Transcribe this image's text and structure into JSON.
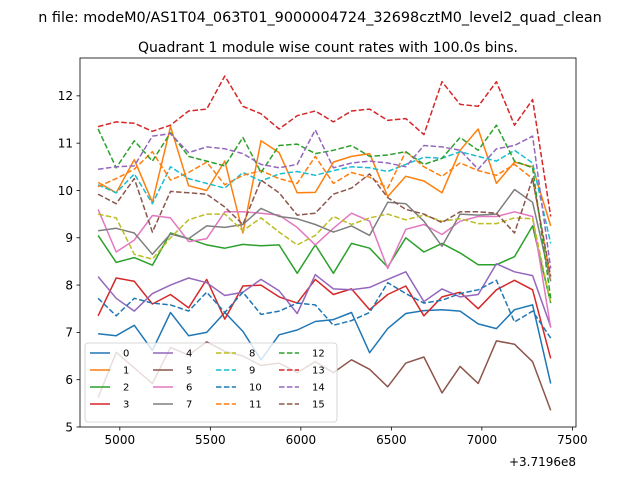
{
  "chart_data": {
    "type": "line",
    "suptitle": "n file: modeM0/AS1T04_063T01_9000004724_32698cztM0_level2_quad_clean",
    "title": "Quadrant 1 module wise count rates with 100.0s bins.",
    "xlabel": "",
    "ylabel": "",
    "offset_label": "+3.7196e8",
    "xlim": [
      4780,
      7520
    ],
    "ylim": [
      5,
      12.8
    ],
    "xticks": [
      5000,
      5500,
      6000,
      6500,
      7000,
      7500
    ],
    "yticks": [
      5,
      6,
      7,
      8,
      9,
      10,
      11,
      12
    ],
    "x": [
      4880,
      4980,
      5080,
      5180,
      5280,
      5380,
      5480,
      5580,
      5680,
      5780,
      5880,
      5980,
      6080,
      6180,
      6280,
      6380,
      6480,
      6580,
      6680,
      6780,
      6880,
      6980,
      7080,
      7180,
      7280,
      7380
    ],
    "legend": {
      "position": "lower-left",
      "columns": 4
    },
    "series": [
      {
        "name": "0",
        "color": "#1f77b4",
        "dash": "solid",
        "values": [
          6.97,
          6.93,
          7.15,
          6.62,
          7.42,
          6.93,
          7.0,
          7.42,
          7.02,
          6.42,
          6.95,
          7.05,
          7.23,
          7.27,
          7.42,
          6.57,
          7.08,
          7.4,
          7.46,
          7.48,
          7.45,
          7.18,
          7.08,
          7.48,
          7.58,
          5.92
        ]
      },
      {
        "name": "1",
        "color": "#ff7f0e",
        "dash": "solid",
        "values": [
          10.17,
          9.95,
          10.65,
          9.75,
          11.35,
          10.1,
          10.0,
          10.62,
          9.1,
          11.05,
          10.8,
          9.95,
          9.96,
          10.6,
          10.72,
          10.78,
          9.87,
          10.3,
          10.2,
          9.95,
          10.85,
          11.3,
          10.15,
          10.6,
          10.5,
          9.25
        ]
      },
      {
        "name": "2",
        "color": "#2ca02c",
        "dash": "solid",
        "values": [
          9.05,
          8.48,
          8.58,
          8.42,
          9.1,
          8.98,
          8.85,
          8.78,
          8.86,
          8.83,
          8.85,
          8.25,
          8.85,
          8.25,
          8.88,
          8.78,
          8.38,
          9.0,
          8.7,
          8.88,
          8.68,
          8.43,
          8.43,
          8.6,
          9.25,
          7.62
        ]
      },
      {
        "name": "3",
        "color": "#d62728",
        "dash": "solid",
        "values": [
          7.35,
          8.15,
          8.08,
          7.6,
          7.8,
          7.52,
          8.12,
          7.28,
          7.98,
          8.0,
          7.75,
          7.62,
          8.12,
          7.8,
          7.92,
          7.48,
          7.8,
          7.98,
          7.35,
          7.75,
          7.85,
          7.5,
          7.9,
          8.1,
          7.9,
          6.45
        ]
      },
      {
        "name": "4",
        "color": "#9467bd",
        "dash": "solid",
        "values": [
          8.18,
          7.72,
          7.45,
          7.82,
          8.0,
          8.15,
          8.05,
          7.78,
          7.85,
          8.12,
          7.88,
          7.4,
          8.22,
          7.92,
          7.9,
          7.95,
          8.12,
          8.28,
          7.65,
          7.92,
          7.75,
          7.8,
          8.45,
          8.28,
          8.2,
          7.12
        ]
      },
      {
        "name": "5",
        "color": "#8c564b",
        "dash": "solid",
        "values": [
          5.62,
          6.58,
          6.25,
          5.92,
          6.68,
          6.52,
          6.8,
          6.6,
          6.5,
          6.3,
          6.35,
          6.15,
          6.38,
          6.15,
          6.42,
          6.22,
          5.85,
          6.35,
          6.48,
          5.72,
          6.28,
          5.92,
          6.82,
          6.75,
          6.38,
          5.35
        ]
      },
      {
        "name": "6",
        "color": "#e377c2",
        "dash": "solid",
        "values": [
          9.6,
          8.7,
          8.95,
          9.47,
          9.42,
          8.92,
          8.98,
          9.55,
          9.55,
          9.52,
          9.48,
          9.22,
          8.85,
          9.2,
          9.52,
          9.35,
          8.35,
          9.18,
          9.28,
          9.07,
          9.35,
          9.45,
          9.45,
          9.55,
          9.45,
          7.1
        ]
      },
      {
        "name": "7",
        "color": "#7f7f7f",
        "dash": "solid",
        "values": [
          9.15,
          9.2,
          9.1,
          8.65,
          9.08,
          8.98,
          9.25,
          9.22,
          9.28,
          9.62,
          9.45,
          9.4,
          9.28,
          9.12,
          9.25,
          9.05,
          9.75,
          9.72,
          9.35,
          8.82,
          9.5,
          9.48,
          9.5,
          10.02,
          9.75,
          8.08
        ]
      },
      {
        "name": "8",
        "color": "#bcbd22",
        "dash": "dashed",
        "values": [
          9.5,
          9.42,
          8.65,
          8.55,
          9.0,
          9.38,
          9.5,
          9.5,
          9.15,
          9.42,
          9.12,
          8.85,
          9.05,
          9.45,
          9.28,
          9.42,
          9.5,
          9.38,
          9.48,
          9.35,
          9.4,
          9.3,
          9.3,
          9.42,
          9.4,
          7.62
        ]
      },
      {
        "name": "9",
        "color": "#17becf",
        "dash": "dashed",
        "values": [
          10.12,
          9.95,
          10.35,
          9.72,
          10.5,
          10.25,
          10.15,
          10.05,
          10.38,
          10.2,
          10.35,
          10.4,
          10.32,
          10.42,
          10.5,
          10.48,
          10.4,
          10.55,
          10.7,
          10.68,
          10.82,
          10.72,
          10.62,
          10.85,
          10.58,
          8.88
        ]
      },
      {
        "name": "10",
        "color": "#1f77b4",
        "dash": "dashed",
        "values": [
          7.72,
          7.35,
          7.72,
          7.62,
          7.58,
          7.45,
          7.85,
          7.42,
          7.85,
          7.38,
          7.45,
          7.62,
          7.58,
          7.15,
          7.25,
          7.42,
          8.05,
          7.82,
          7.62,
          7.68,
          7.82,
          7.9,
          8.1,
          7.22,
          7.45,
          6.88
        ]
      },
      {
        "name": "11",
        "color": "#ff7f0e",
        "dash": "dashed",
        "values": [
          10.08,
          10.25,
          10.45,
          10.82,
          10.22,
          10.38,
          10.6,
          10.12,
          10.32,
          10.42,
          10.25,
          10.15,
          10.72,
          10.15,
          10.38,
          10.28,
          10.05,
          10.82,
          10.5,
          10.3,
          10.58,
          10.42,
          10.32,
          10.55,
          10.25,
          8.12
        ]
      },
      {
        "name": "12",
        "color": "#2ca02c",
        "dash": "dashed",
        "values": [
          11.3,
          10.48,
          11.05,
          10.62,
          11.22,
          10.72,
          10.62,
          10.52,
          11.12,
          10.38,
          10.95,
          10.98,
          10.78,
          10.85,
          10.95,
          10.72,
          10.75,
          10.82,
          10.55,
          10.68,
          11.12,
          10.85,
          11.38,
          10.62,
          10.48,
          7.72
        ]
      },
      {
        "name": "13",
        "color": "#d62728",
        "dash": "dashed",
        "values": [
          11.35,
          11.45,
          11.42,
          11.25,
          11.38,
          11.68,
          11.72,
          12.42,
          11.78,
          11.62,
          11.3,
          11.58,
          11.68,
          11.45,
          11.68,
          11.72,
          11.48,
          11.52,
          11.18,
          12.3,
          11.82,
          11.78,
          12.3,
          11.38,
          11.92,
          9.45
        ]
      },
      {
        "name": "14",
        "color": "#9467bd",
        "dash": "dashed",
        "values": [
          10.45,
          10.5,
          10.52,
          11.15,
          11.2,
          10.8,
          10.92,
          10.88,
          10.78,
          10.55,
          10.48,
          10.55,
          11.28,
          10.48,
          10.58,
          10.62,
          10.58,
          10.5,
          10.95,
          10.92,
          10.85,
          10.45,
          10.88,
          10.95,
          11.15,
          8.35
        ]
      },
      {
        "name": "15",
        "color": "#8c564b",
        "dash": "dashed",
        "values": [
          9.92,
          9.72,
          10.25,
          9.12,
          9.98,
          9.95,
          9.92,
          9.65,
          9.28,
          10.22,
          9.95,
          9.48,
          9.52,
          9.92,
          10.05,
          10.35,
          9.85,
          9.6,
          9.5,
          9.32,
          9.55,
          9.55,
          9.52,
          9.1,
          10.25,
          8.18
        ]
      }
    ]
  }
}
